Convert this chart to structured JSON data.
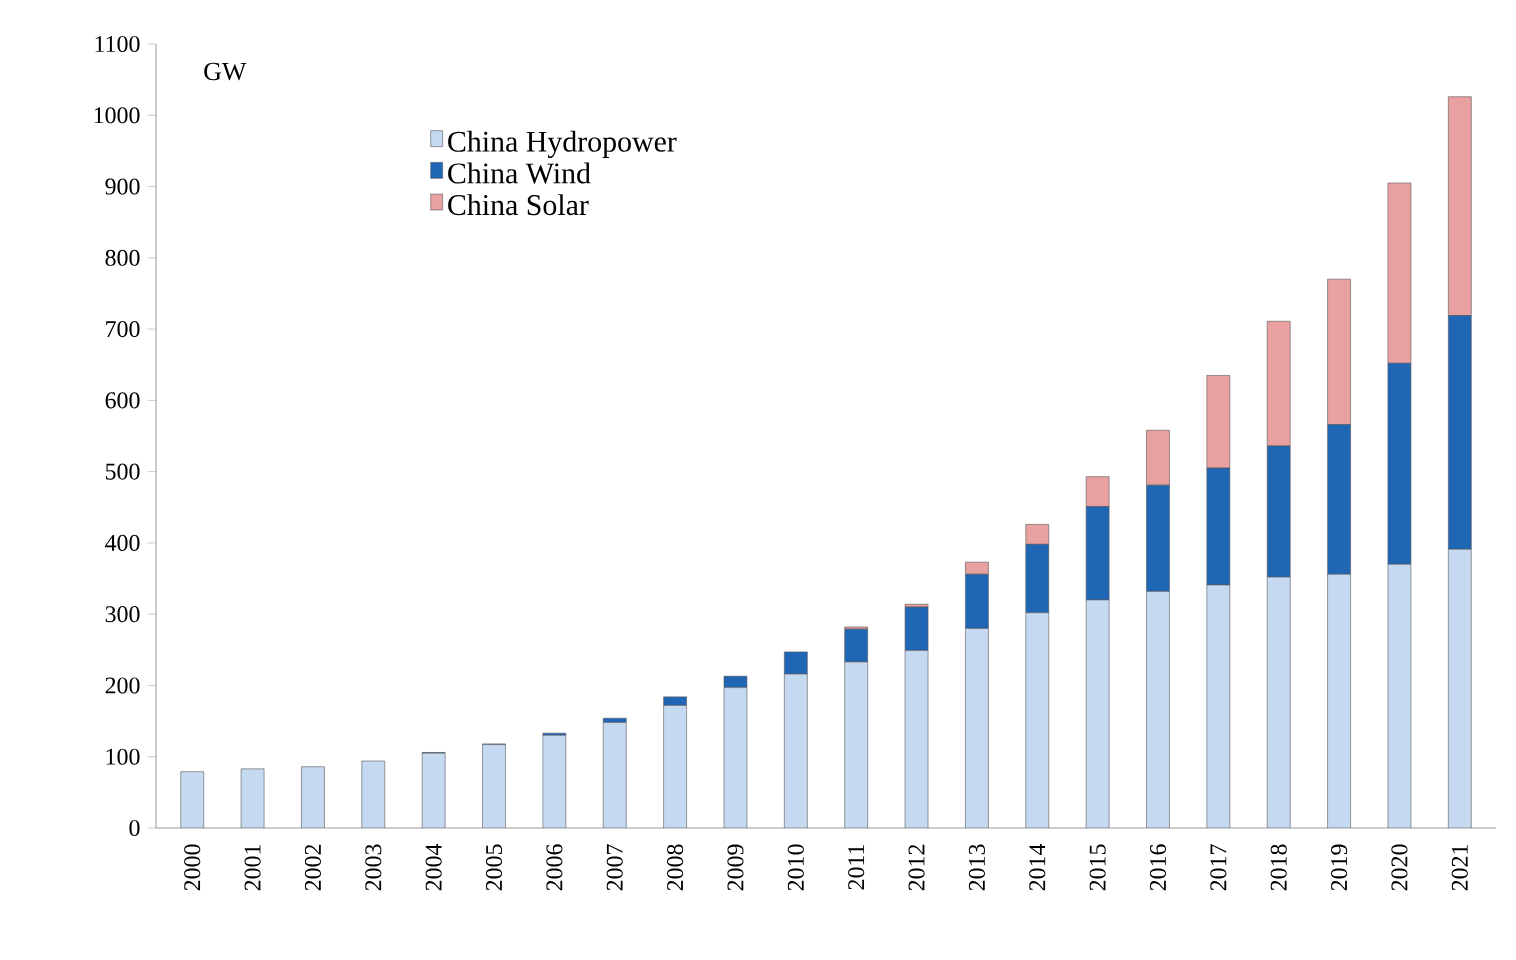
{
  "chart_data": {
    "type": "bar",
    "stacked": true,
    "ylabel": "GW",
    "categories": [
      "2000",
      "2001",
      "2002",
      "2003",
      "2004",
      "2005",
      "2006",
      "2007",
      "2008",
      "2009",
      "2010",
      "2011",
      "2012",
      "2013",
      "2014",
      "2015",
      "2016",
      "2017",
      "2018",
      "2019",
      "2020",
      "2021"
    ],
    "series": [
      {
        "name": "China Hydropower",
        "color": "#c5d9f1",
        "values": [
          79,
          83,
          86,
          94,
          105,
          117,
          130,
          148,
          172,
          197,
          216,
          233,
          249,
          280,
          302,
          320,
          332,
          341,
          352,
          356,
          370,
          391
        ]
      },
      {
        "name": "China Wind",
        "color": "#1f66b5",
        "values": [
          0,
          0,
          0,
          0,
          1,
          1,
          3,
          6,
          12,
          16,
          31,
          46,
          61,
          76,
          96,
          131,
          149,
          164,
          184,
          210,
          282,
          328
        ]
      },
      {
        "name": "China Solar",
        "color": "#e8a0a0",
        "values": [
          0,
          0,
          0,
          0,
          0,
          0,
          0,
          0,
          0,
          0,
          0,
          3,
          4,
          17,
          28,
          42,
          77,
          130,
          175,
          204,
          253,
          307
        ]
      }
    ],
    "ylim": [
      0,
      1100
    ],
    "yticks": [
      0,
      100,
      200,
      300,
      400,
      500,
      600,
      700,
      800,
      900,
      1000,
      1100
    ],
    "grid": false,
    "legend": "top left"
  }
}
